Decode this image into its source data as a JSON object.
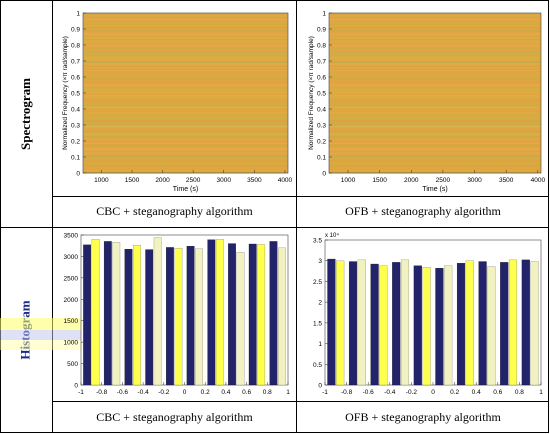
{
  "rows": {
    "spectrogram_label": "Spectrogram",
    "histogram_label": "Histogram"
  },
  "captions": {
    "top_left": "CBC + steganography algorithm",
    "top_right": "OFB + steganography algorithm",
    "bottom_left": "CBC + steganography algorithm",
    "bottom_right": "OFB + steganography algorithm"
  },
  "colors": {
    "spectrogram_fill": "#e2a63a",
    "bar_dark": "#23236b",
    "bar_light": "#f2f2c0",
    "bar_yellow": "#ffff4d"
  },
  "chart_data": [
    {
      "type": "heatmap",
      "xlabel": "Time (s)",
      "ylabel": "Normalized Frequency (×π rad/sample)",
      "x_ticks": [
        "1000",
        "1500",
        "2000",
        "2500",
        "3000",
        "3500",
        "4000"
      ],
      "y_ticks": [
        "0",
        "0.1",
        "0.2",
        "0.3",
        "0.4",
        "0.5",
        "0.6",
        "0.7",
        "0.8",
        "0.9",
        "1"
      ],
      "xlim": [
        700,
        4050
      ],
      "ylim": [
        0,
        1
      ]
    },
    {
      "type": "heatmap",
      "xlabel": "Time (s)",
      "ylabel": "Normalized Frequency (×π rad/sample)",
      "x_ticks": [
        "1000",
        "1500",
        "2000",
        "2500",
        "3000",
        "3500",
        "4000"
      ],
      "y_ticks": [
        "0",
        "0.1",
        "0.2",
        "0.3",
        "0.4",
        "0.5",
        "0.6",
        "0.7",
        "0.8",
        "0.9",
        "1"
      ],
      "xlim": [
        700,
        4050
      ],
      "ylim": [
        0,
        1
      ]
    },
    {
      "type": "bar",
      "categories": [
        -0.9,
        -0.7,
        -0.5,
        -0.3,
        -0.1,
        0.1,
        0.3,
        0.5,
        0.7,
        0.9
      ],
      "x_ticks": [
        "-1",
        "-0.8",
        "-0.6",
        "-0.4",
        "-0.2",
        "0",
        "0.2",
        "0.4",
        "0.6",
        "0.8",
        "1"
      ],
      "y_ticks": [
        "0",
        "500",
        "1000",
        "1500",
        "2000",
        "2500",
        "3000",
        "3500"
      ],
      "ylim": [
        0,
        3500
      ],
      "xlim": [
        -1,
        1
      ],
      "series": [
        {
          "values": [
            3270,
            3350,
            3170,
            3160,
            3210,
            3240,
            3390,
            3300,
            3290,
            3350
          ]
        },
        {
          "values": [
            3400,
            3330,
            3260,
            3440,
            3190,
            3180,
            3400,
            3100,
            3280,
            3200
          ]
        }
      ]
    },
    {
      "type": "bar",
      "categories": [
        -0.9,
        -0.7,
        -0.5,
        -0.3,
        -0.1,
        0.1,
        0.3,
        0.5,
        0.7,
        0.9
      ],
      "x_ticks": [
        "-1",
        "-0.8",
        "-0.6",
        "-0.4",
        "-0.2",
        "0",
        "0.2",
        "0.4",
        "0.6",
        "0.8",
        "1"
      ],
      "y_ticks": [
        "0",
        "0.5",
        "1",
        "1.5",
        "2",
        "2.5",
        "3",
        "3.5"
      ],
      "y_exponent": "x 10⁴",
      "ylim": [
        0,
        3.5
      ],
      "xlim": [
        -1,
        1
      ],
      "series": [
        {
          "values": [
            3.04,
            2.98,
            2.92,
            2.96,
            2.88,
            2.82,
            2.94,
            2.98,
            2.96,
            3.02
          ]
        },
        {
          "values": [
            3.0,
            3.02,
            2.88,
            3.02,
            2.84,
            2.88,
            3.0,
            2.86,
            3.02,
            2.98
          ]
        }
      ]
    }
  ]
}
